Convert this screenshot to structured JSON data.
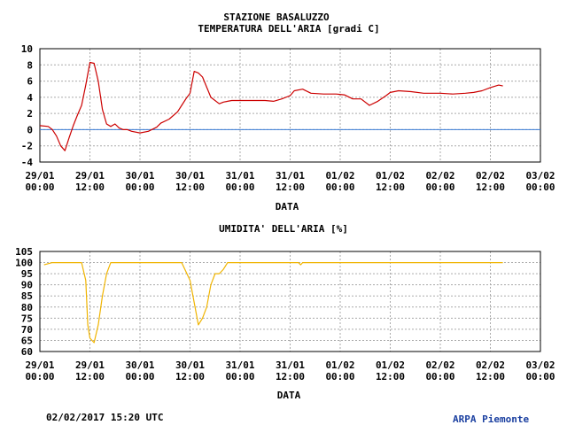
{
  "station_title": "STAZIONE BASALUZZO",
  "timestamp": "02/02/2017 15:20 UTC",
  "credit": "ARPA Piemonte",
  "colors": {
    "temperature_line": "#cc0000",
    "humidity_line": "#f0b400",
    "zero_line": "#3a7bd5",
    "grid": "#aaaaaa",
    "credit_text": "#1a3fa0"
  },
  "chart_data": [
    {
      "type": "line",
      "title": "TEMPERATURA DELL'ARIA [gradi C]",
      "xlabel": "DATA",
      "ylabel": "",
      "x_ticks": [
        [
          "29/01",
          "00:00"
        ],
        [
          "29/01",
          "12:00"
        ],
        [
          "30/01",
          "00:00"
        ],
        [
          "30/01",
          "12:00"
        ],
        [
          "31/01",
          "00:00"
        ],
        [
          "31/01",
          "12:00"
        ],
        [
          "01/02",
          "00:00"
        ],
        [
          "01/02",
          "12:00"
        ],
        [
          "02/02",
          "00:00"
        ],
        [
          "02/02",
          "12:00"
        ],
        [
          "03/02",
          "00:00"
        ]
      ],
      "xlim": [
        "2017-01-29 00:00",
        "2017-02-03 00:00"
      ],
      "ylim": [
        -4,
        10
      ],
      "y_ticks": [
        -4,
        -2,
        0,
        2,
        4,
        6,
        8,
        10
      ],
      "grid": true,
      "reference_line": 0,
      "series": [
        {
          "x": [
            "2017-01-29 00:00",
            "2017-01-29 02:00",
            "2017-01-29 03:00",
            "2017-01-29 04:00",
            "2017-01-29 05:00",
            "2017-01-29 06:00",
            "2017-01-29 07:00",
            "2017-01-29 08:00",
            "2017-01-29 09:00",
            "2017-01-29 10:00",
            "2017-01-29 11:00",
            "2017-01-29 12:00",
            "2017-01-29 13:00",
            "2017-01-29 14:00",
            "2017-01-29 15:00",
            "2017-01-29 16:00",
            "2017-01-29 17:00",
            "2017-01-29 18:00",
            "2017-01-29 19:00",
            "2017-01-29 20:00",
            "2017-01-29 21:00",
            "2017-01-29 22:00",
            "2017-01-30 00:00",
            "2017-01-30 02:00",
            "2017-01-30 04:00",
            "2017-01-30 05:00",
            "2017-01-30 07:00",
            "2017-01-30 09:00",
            "2017-01-30 10:00",
            "2017-01-30 11:00",
            "2017-01-30 12:00",
            "2017-01-30 13:00",
            "2017-01-30 14:00",
            "2017-01-30 15:00",
            "2017-01-30 17:00",
            "2017-01-30 19:00",
            "2017-01-30 20:00",
            "2017-01-30 21:00",
            "2017-01-30 22:00",
            "2017-01-31 00:00",
            "2017-01-31 03:00",
            "2017-01-31 06:00",
            "2017-01-31 08:00",
            "2017-01-31 10:00",
            "2017-01-31 12:00",
            "2017-01-31 13:00",
            "2017-01-31 15:00",
            "2017-01-31 17:00",
            "2017-01-31 20:00",
            "2017-01-31 23:00",
            "2017-02-01 01:00",
            "2017-02-01 03:00",
            "2017-02-01 05:00",
            "2017-02-01 07:00",
            "2017-02-01 09:00",
            "2017-02-01 11:00",
            "2017-02-01 12:00",
            "2017-02-01 14:00",
            "2017-02-01 17:00",
            "2017-02-01 20:00",
            "2017-02-02 00:00",
            "2017-02-02 03:00",
            "2017-02-02 06:00",
            "2017-02-02 08:00",
            "2017-02-02 10:00",
            "2017-02-02 12:00",
            "2017-02-02 14:00",
            "2017-02-02 15:00"
          ],
          "values": [
            0.5,
            0.4,
            0.0,
            -0.8,
            -2.0,
            -2.6,
            -1.0,
            0.5,
            1.8,
            3.0,
            5.5,
            8.3,
            8.2,
            6.0,
            2.5,
            0.7,
            0.4,
            0.7,
            0.2,
            0.0,
            0.0,
            -0.2,
            -0.4,
            -0.2,
            0.3,
            0.8,
            1.3,
            2.2,
            3.0,
            3.8,
            4.5,
            7.2,
            7.0,
            6.5,
            4.0,
            3.2,
            3.4,
            3.5,
            3.6,
            3.6,
            3.6,
            3.6,
            3.5,
            3.8,
            4.2,
            4.8,
            5.0,
            4.5,
            4.4,
            4.4,
            4.3,
            3.8,
            3.8,
            3.0,
            3.5,
            4.2,
            4.6,
            4.8,
            4.7,
            4.5,
            4.5,
            4.4,
            4.5,
            4.6,
            4.8,
            5.2,
            5.5,
            5.4
          ]
        }
      ]
    },
    {
      "type": "line",
      "title": "UMIDITA' DELL'ARIA [%]",
      "xlabel": "DATA",
      "ylabel": "",
      "x_ticks": [
        [
          "29/01",
          "00:00"
        ],
        [
          "29/01",
          "12:00"
        ],
        [
          "30/01",
          "00:00"
        ],
        [
          "30/01",
          "12:00"
        ],
        [
          "31/01",
          "00:00"
        ],
        [
          "31/01",
          "12:00"
        ],
        [
          "01/02",
          "00:00"
        ],
        [
          "01/02",
          "12:00"
        ],
        [
          "02/02",
          "00:00"
        ],
        [
          "02/02",
          "12:00"
        ],
        [
          "03/02",
          "00:00"
        ]
      ],
      "xlim": [
        "2017-01-29 00:00",
        "2017-02-03 00:00"
      ],
      "ylim": [
        60,
        105
      ],
      "y_ticks": [
        60,
        65,
        70,
        75,
        80,
        85,
        90,
        95,
        100,
        105
      ],
      "grid": true,
      "series": [
        {
          "x": [
            "2017-01-29 01:00",
            "2017-01-29 03:00",
            "2017-01-29 10:00",
            "2017-01-29 11:00",
            "2017-01-29 11:30",
            "2017-01-29 12:00",
            "2017-01-29 13:00",
            "2017-01-29 14:00",
            "2017-01-29 15:00",
            "2017-01-29 16:00",
            "2017-01-29 17:00",
            "2017-01-29 18:00",
            "2017-01-30 10:00",
            "2017-01-30 12:00",
            "2017-01-30 14:00",
            "2017-01-30 15:00",
            "2017-01-30 16:00",
            "2017-01-30 17:00",
            "2017-01-30 18:00",
            "2017-01-30 19:00",
            "2017-01-30 20:00",
            "2017-01-30 21:00",
            "2017-01-30 22:00",
            "2017-01-31 00:00",
            "2017-01-31 14:00",
            "2017-01-31 14:30",
            "2017-01-31 15:00",
            "2017-02-02 15:00"
          ],
          "values": [
            99,
            100,
            100,
            92,
            72,
            66,
            64,
            72,
            85,
            95,
            100,
            100,
            100,
            92,
            72,
            75,
            80,
            90,
            95,
            95,
            97,
            100,
            100,
            100,
            100,
            99,
            100,
            100
          ]
        }
      ]
    }
  ]
}
